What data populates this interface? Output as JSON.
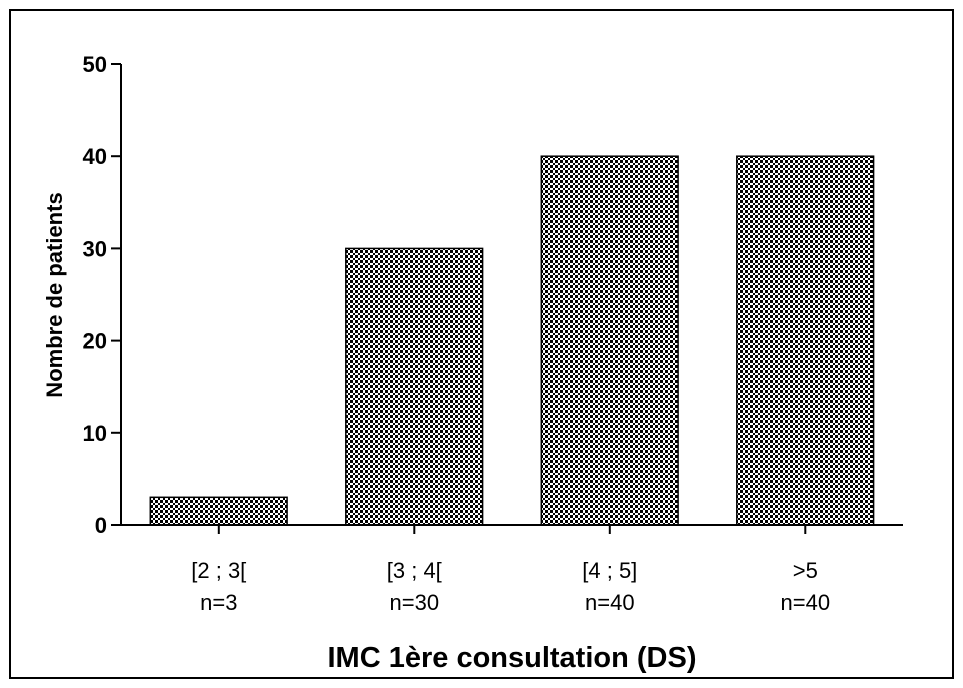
{
  "chart_data": {
    "type": "bar",
    "categories": [
      "[2 ; 3[",
      "[3 ; 4[",
      "[4 ; 5]",
      ">5"
    ],
    "category_sublabels": [
      "n=3",
      "n=30",
      "n=40",
      "n=40"
    ],
    "values": [
      3,
      30,
      40,
      40
    ],
    "title": "",
    "xlabel": "IMC 1ère consultation (DS)",
    "ylabel": "Nombre de patients",
    "ylim": [
      0,
      50
    ],
    "yticks": [
      0,
      10,
      20,
      30,
      40,
      50
    ],
    "grid": false,
    "legend": "none",
    "bar_fill": "dense black checkered pattern",
    "colors": {
      "bar_pattern_dark": "#000000",
      "bar_pattern_light": "#ffffff",
      "axis": "#000000",
      "frame": "#000000"
    }
  }
}
